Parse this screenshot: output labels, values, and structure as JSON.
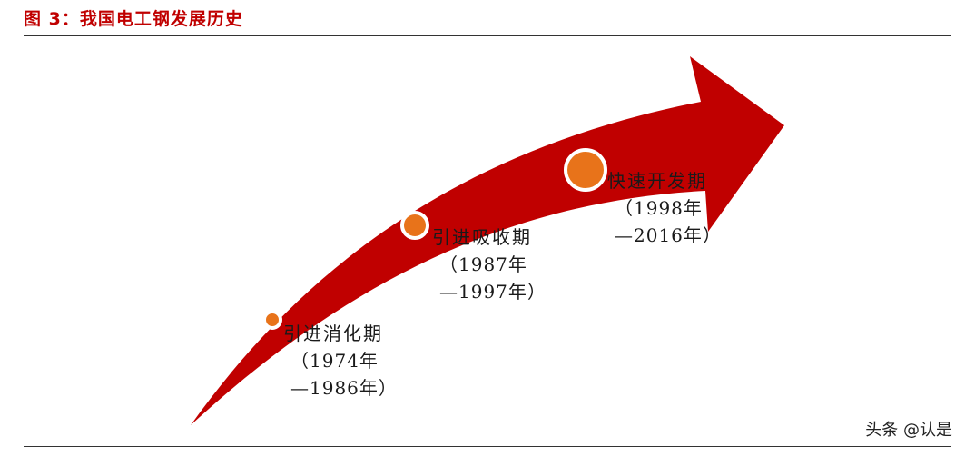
{
  "title": "图 3：我国电工钢发展历史",
  "stages": [
    {
      "name": "引进消化期",
      "start": "（1974年",
      "end": "—1986年）"
    },
    {
      "name": "引进吸收期",
      "start": "（1987年",
      "end": "—1997年）"
    },
    {
      "name": "快速开发期",
      "start": "（1998年",
      "end": "—2016年）"
    }
  ],
  "watermark": "头条 @认是",
  "colors": {
    "arrow": "#c00000",
    "marker": "#e8731a",
    "marker_ring": "#ffffff",
    "title": "#c00000"
  }
}
